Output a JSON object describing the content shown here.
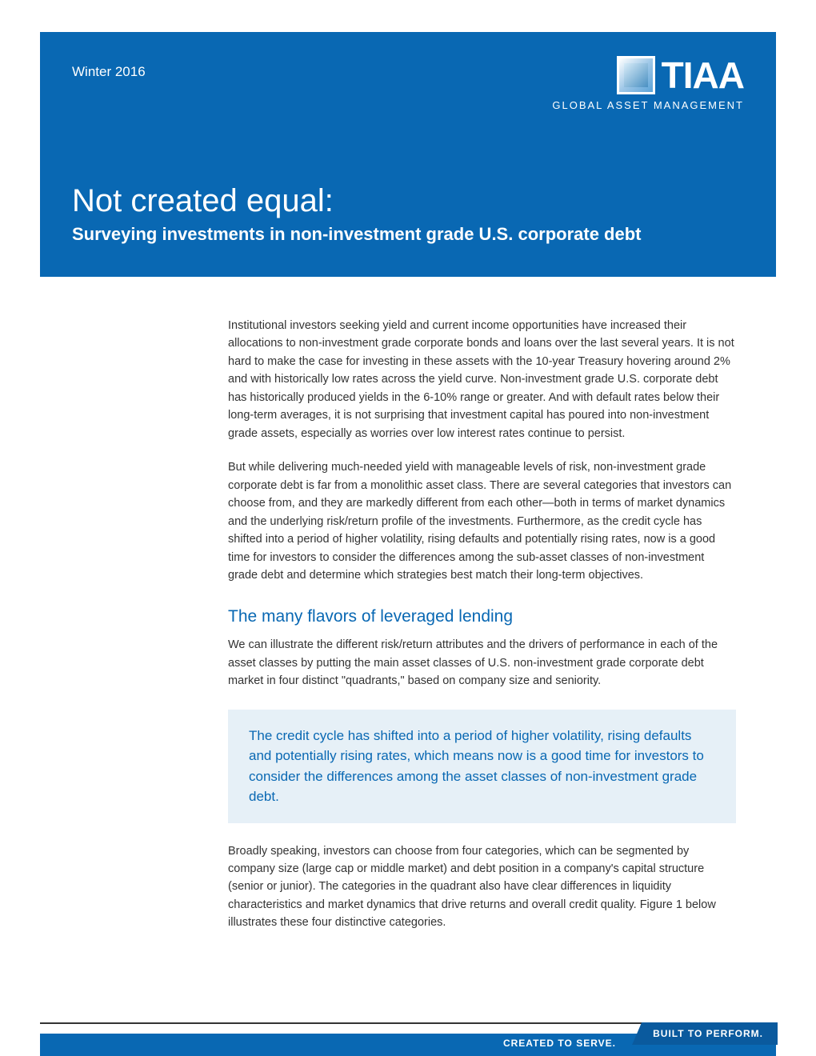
{
  "header": {
    "date": "Winter 2016",
    "logo_text": "TIAA",
    "logo_sub": "GLOBAL ASSET MANAGEMENT",
    "title": "Not created equal:",
    "subtitle": "Surveying investments in non-investment grade U.S. corporate debt"
  },
  "body": {
    "para1": "Institutional investors seeking yield and current income opportunities have increased their allocations to non-investment grade corporate bonds and loans over the last several years. It is not hard to make the case for investing in these assets with the 10-year Treasury hovering around 2% and with historically low rates across the yield curve. Non-investment grade U.S. corporate debt has historically produced yields in the 6-10% range or greater. And with default rates below their long-term averages, it is not surprising that investment capital has poured into non-investment grade assets, especially as worries over low interest rates continue to persist.",
    "para2": "But while delivering much-needed yield with manageable levels of risk, non-investment grade corporate debt is far from a monolithic asset class. There are several categories that investors can choose from, and they are markedly different from each other—both in terms of market dynamics and the underlying risk/return profile of the investments. Furthermore, as the credit cycle has shifted into a period of higher volatility, rising defaults and potentially rising rates, now is a good time for investors to consider the differences among the sub-asset classes of non-investment grade debt and determine which strategies best match their long-term objectives.",
    "heading1": "The many flavors of leveraged lending",
    "para3": "We can illustrate the different risk/return attributes and the drivers of performance in each of the asset classes by putting the main asset classes of U.S. non-investment grade corporate debt market in four distinct \"quadrants,\" based on company size and seniority.",
    "callout": "The credit cycle has shifted into a period of higher volatility, rising defaults and potentially rising rates, which means now is a good time for investors to consider the differences among the asset classes of non-investment grade debt.",
    "para4": "Broadly speaking, investors can choose from four categories, which can be segmented by company size (large cap or middle market) and debt position in a company's capital structure (senior or junior). The categories in the quadrant also have clear differences in liquidity characteristics and market dynamics that drive returns and overall credit quality. Figure 1 below illustrates these four distinctive categories."
  },
  "footer": {
    "left": "CREATED TO SERVE.",
    "right": "BUILT TO PERFORM."
  },
  "colors": {
    "primary": "#0968b3",
    "callout_bg": "#e6f0f7",
    "text": "#333333",
    "white": "#ffffff"
  }
}
